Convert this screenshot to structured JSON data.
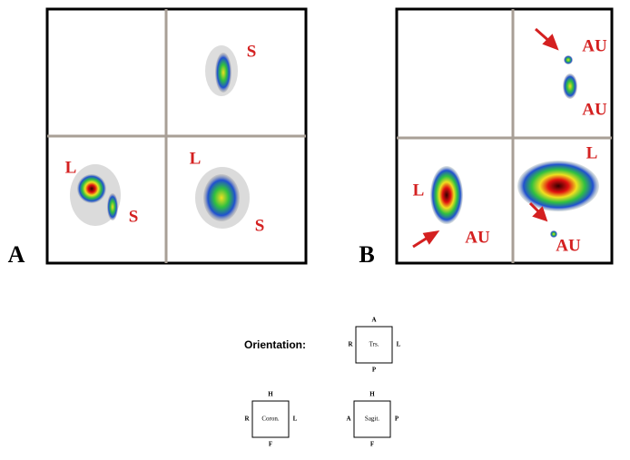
{
  "panels": [
    {
      "label": "A",
      "annotations": [
        "S",
        "L",
        "S",
        "L",
        "S"
      ]
    },
    {
      "label": "B",
      "annotations": [
        "AU",
        "AU",
        "L",
        "L",
        "AU",
        "AU"
      ]
    }
  ],
  "orientation": {
    "title": "Orientation:",
    "views": [
      {
        "name": "Trs.",
        "top": "A",
        "bottom": "P",
        "left": "R",
        "right": "L"
      },
      {
        "name": "Coron.",
        "top": "H",
        "bottom": "F",
        "left": "R",
        "right": "L"
      },
      {
        "name": "Sagit.",
        "top": "H",
        "bottom": "F",
        "left": "A",
        "right": "P"
      }
    ]
  }
}
